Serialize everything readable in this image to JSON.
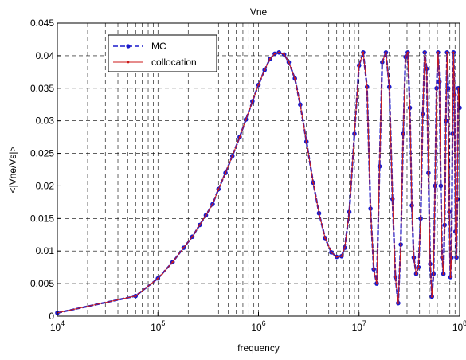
{
  "chart_data": {
    "type": "line",
    "title": "Vne",
    "xlabel": "frequency",
    "ylabel": "<|Vne/Vs|>",
    "x_scale": "log",
    "xlim": [
      10000,
      100000000
    ],
    "ylim": [
      0,
      0.045
    ],
    "x_ticks": [
      {
        "value": 10000,
        "base": "10",
        "exp": "4"
      },
      {
        "value": 100000,
        "base": "10",
        "exp": "5"
      },
      {
        "value": 1000000,
        "base": "10",
        "exp": "6"
      },
      {
        "value": 10000000,
        "base": "10",
        "exp": "7"
      },
      {
        "value": 100000000,
        "base": "10",
        "exp": "8"
      }
    ],
    "y_ticks": [
      {
        "value": 0,
        "label": "0"
      },
      {
        "value": 0.005,
        "label": "0.005"
      },
      {
        "value": 0.01,
        "label": "0.01"
      },
      {
        "value": 0.015,
        "label": "0.015"
      },
      {
        "value": 0.02,
        "label": "0.02"
      },
      {
        "value": 0.025,
        "label": "0.025"
      },
      {
        "value": 0.03,
        "label": "0.03"
      },
      {
        "value": 0.035,
        "label": "0.035"
      },
      {
        "value": 0.04,
        "label": "0.04"
      },
      {
        "value": 0.045,
        "label": "0.045"
      }
    ],
    "grid": true,
    "legend_position": "top-left",
    "series": [
      {
        "name": "MC",
        "color": "#1a1acc",
        "style": "dashed line with filled circle markers",
        "x": [
          10000,
          60000,
          100000,
          140000,
          180000,
          220000,
          260000,
          300000,
          350000,
          400000,
          470000,
          550000,
          650000,
          750000,
          870000,
          1000000,
          1150000,
          1300000,
          1450000,
          1600000,
          1800000,
          2000000,
          2300000,
          2600000,
          3000000,
          3500000,
          4000000,
          4600000,
          5300000,
          6000000,
          6700000,
          7200000,
          8000000,
          9000000,
          10000000,
          11000000,
          12000000,
          13000000,
          14000000,
          15000000,
          16000000,
          17000000,
          18500000,
          20000000,
          21500000,
          23000000,
          24500000,
          26000000,
          27500000,
          29000000,
          30500000,
          32000000,
          33500000,
          35000000,
          37000000,
          39000000,
          41000000,
          43000000,
          45000000,
          47000000,
          49000000,
          51000000,
          53000000,
          55000000,
          57000000,
          59000000,
          61000000,
          63000000,
          65000000,
          67000000,
          69000000,
          71000000,
          73000000,
          75000000,
          77000000,
          79000000,
          81000000,
          83000000,
          85000000,
          87000000,
          89000000,
          91000000,
          93000000,
          95000000,
          97000000,
          100000000
        ],
        "y": [
          0.0005,
          0.0031,
          0.0058,
          0.0083,
          0.0105,
          0.0122,
          0.014,
          0.0155,
          0.0172,
          0.0195,
          0.022,
          0.0246,
          0.0275,
          0.0302,
          0.033,
          0.0355,
          0.0378,
          0.0395,
          0.0403,
          0.0405,
          0.0402,
          0.039,
          0.0365,
          0.0325,
          0.0268,
          0.0205,
          0.0158,
          0.012,
          0.0098,
          0.0091,
          0.0092,
          0.0105,
          0.016,
          0.028,
          0.0385,
          0.0405,
          0.0352,
          0.0165,
          0.0072,
          0.005,
          0.023,
          0.039,
          0.0405,
          0.0352,
          0.018,
          0.006,
          0.002,
          0.011,
          0.028,
          0.0398,
          0.0405,
          0.032,
          0.017,
          0.009,
          0.0065,
          0.0075,
          0.015,
          0.031,
          0.0405,
          0.038,
          0.022,
          0.008,
          0.003,
          0.0065,
          0.02,
          0.035,
          0.0405,
          0.036,
          0.02,
          0.009,
          0.0065,
          0.014,
          0.03,
          0.0405,
          0.035,
          0.016,
          0.006,
          0.009,
          0.028,
          0.0405,
          0.034,
          0.013,
          0.009,
          0.018,
          0.035,
          0.032
        ]
      },
      {
        "name": "collocation",
        "color": "#cc1a1a",
        "style": "solid line with point markers",
        "x": [
          10000,
          60000,
          100000,
          140000,
          180000,
          220000,
          260000,
          300000,
          350000,
          400000,
          470000,
          550000,
          650000,
          750000,
          870000,
          1000000,
          1150000,
          1300000,
          1450000,
          1600000,
          1800000,
          2000000,
          2300000,
          2600000,
          3000000,
          3500000,
          4000000,
          4600000,
          5300000,
          6000000,
          6700000,
          7200000,
          8000000,
          9000000,
          10000000,
          11000000,
          12000000,
          13000000,
          14000000,
          15000000,
          16000000,
          17000000,
          18500000,
          20000000,
          21500000,
          23000000,
          24500000,
          26000000,
          27500000,
          29000000,
          30500000,
          32000000,
          33500000,
          35000000,
          37000000,
          39000000,
          41000000,
          43000000,
          45000000,
          47000000,
          49000000,
          51000000,
          53000000,
          55000000,
          57000000,
          59000000,
          61000000,
          63000000,
          65000000,
          67000000,
          69000000,
          71000000,
          73000000,
          75000000,
          77000000,
          79000000,
          81000000,
          83000000,
          85000000,
          87000000,
          89000000,
          91000000,
          93000000,
          95000000,
          97000000,
          100000000
        ],
        "y": [
          0.0005,
          0.0031,
          0.0058,
          0.0083,
          0.0105,
          0.0122,
          0.014,
          0.0155,
          0.0172,
          0.0195,
          0.022,
          0.0246,
          0.0275,
          0.0302,
          0.033,
          0.0355,
          0.0378,
          0.0395,
          0.0403,
          0.0405,
          0.0402,
          0.039,
          0.0365,
          0.0325,
          0.0268,
          0.0205,
          0.0158,
          0.012,
          0.0098,
          0.0091,
          0.0092,
          0.0105,
          0.016,
          0.028,
          0.0385,
          0.0405,
          0.0352,
          0.0165,
          0.0072,
          0.005,
          0.023,
          0.039,
          0.0405,
          0.0352,
          0.018,
          0.006,
          0.002,
          0.011,
          0.028,
          0.0398,
          0.0405,
          0.032,
          0.017,
          0.009,
          0.0065,
          0.0075,
          0.015,
          0.031,
          0.0405,
          0.038,
          0.022,
          0.008,
          0.003,
          0.0065,
          0.02,
          0.035,
          0.0405,
          0.036,
          0.02,
          0.009,
          0.0065,
          0.014,
          0.03,
          0.0405,
          0.035,
          0.016,
          0.006,
          0.009,
          0.028,
          0.0405,
          0.034,
          0.013,
          0.009,
          0.018,
          0.035,
          0.032
        ]
      }
    ]
  }
}
